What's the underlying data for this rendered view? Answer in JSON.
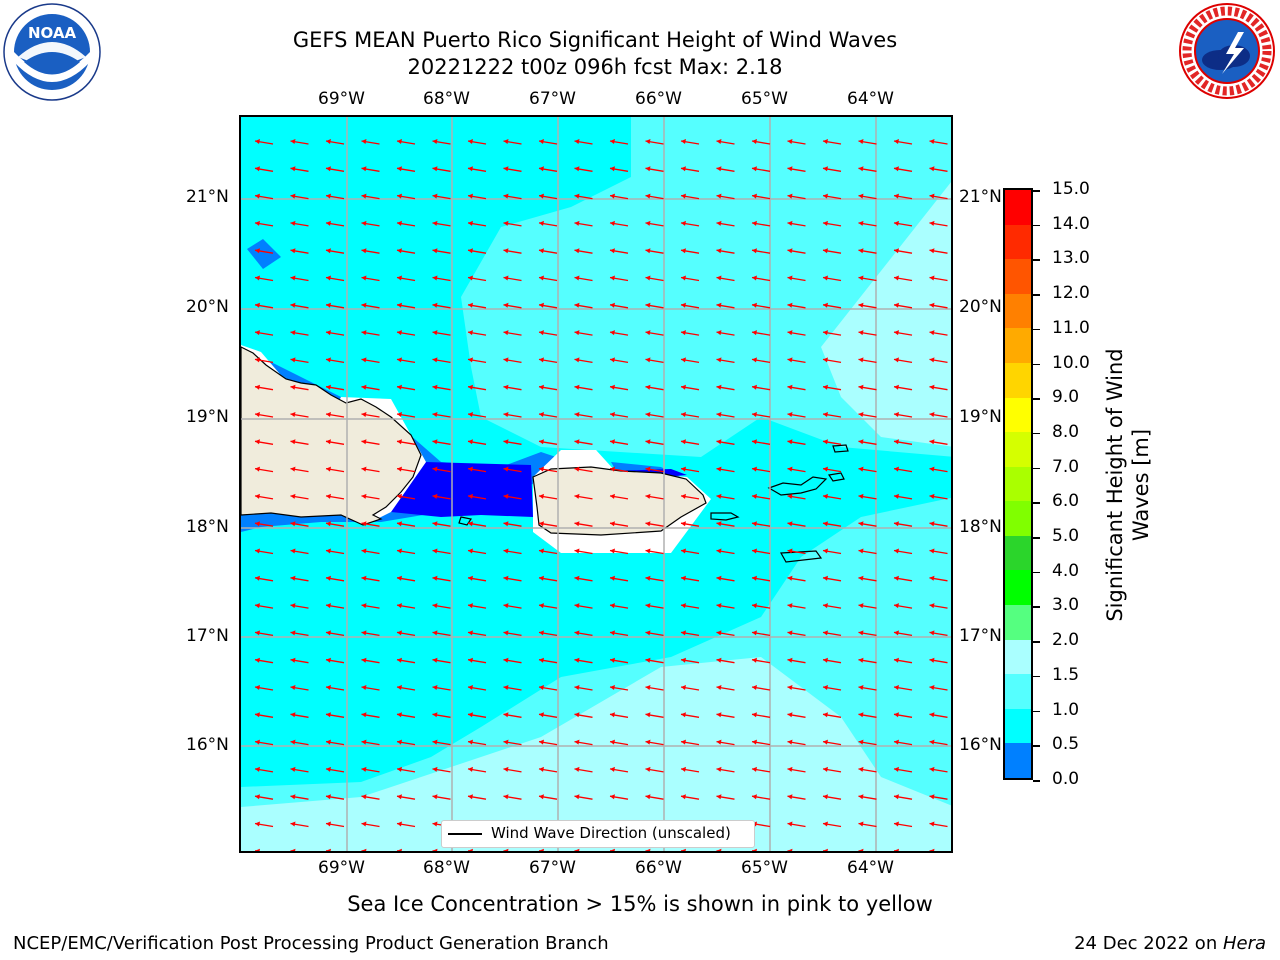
{
  "header": {
    "title_line1": "GEFS MEAN Puerto Rico Significant Height of Wind Waves",
    "title_line2": "20221222 t00z 096h fcst   Max: 2.18"
  },
  "logos": {
    "left_name": "noaa-logo",
    "left_text": "NOAA",
    "left_ring_text": "NATIONAL OCEANIC AND ATMOSPHERIC ADMINISTRATION • U.S. DEPARTMENT OF COMMERCE",
    "right_name": "nws-logo",
    "right_ring_text": "NATIONAL WEATHER SERVICE"
  },
  "map": {
    "lon_labels": [
      "69°W",
      "68°W",
      "67°W",
      "66°W",
      "65°W",
      "64°W"
    ],
    "lat_labels": [
      "21°N",
      "20°N",
      "19°N",
      "18°N",
      "17°N",
      "16°N"
    ],
    "legend_label": "Wind Wave Direction (unscaled)",
    "colors": {
      "ocean_base": "#00ffff",
      "band_1_5_2_0": "#55ffff",
      "band_2_0_3_0": "#aaffff",
      "band_0_5_1_0": "#0080ff",
      "band_0_0_0_5": "#0000ff",
      "land": "#f0ecdc",
      "arrows": "#ff0000",
      "gridlines": "#b0b0b0"
    }
  },
  "colorbar": {
    "title": "Significant Height of Wind Waves [m]",
    "ticks": [
      "15.0",
      "14.0",
      "13.0",
      "12.0",
      "11.0",
      "10.0",
      "9.0",
      "8.0",
      "7.0",
      "6.0",
      "5.0",
      "4.0",
      "3.0",
      "2.0",
      "1.5",
      "1.0",
      "0.5",
      "0.0"
    ],
    "colors": [
      "#ff0000",
      "#ff2a00",
      "#ff5500",
      "#ff8000",
      "#ffaa00",
      "#ffd500",
      "#ffff00",
      "#d5ff00",
      "#aaff00",
      "#80ff00",
      "#2bd52b",
      "#00ff00",
      "#55ff80",
      "#aaffff",
      "#55ffff",
      "#00ffff",
      "#0080ff",
      "#0000ff"
    ]
  },
  "footer": {
    "note": "Sea Ice Concentration > 15% is shown in pink to yellow",
    "credit": "NCEP/EMC/Verification Post Processing Product Generation Branch",
    "date": "24 Dec 2022 on ",
    "machine": "Hera"
  }
}
